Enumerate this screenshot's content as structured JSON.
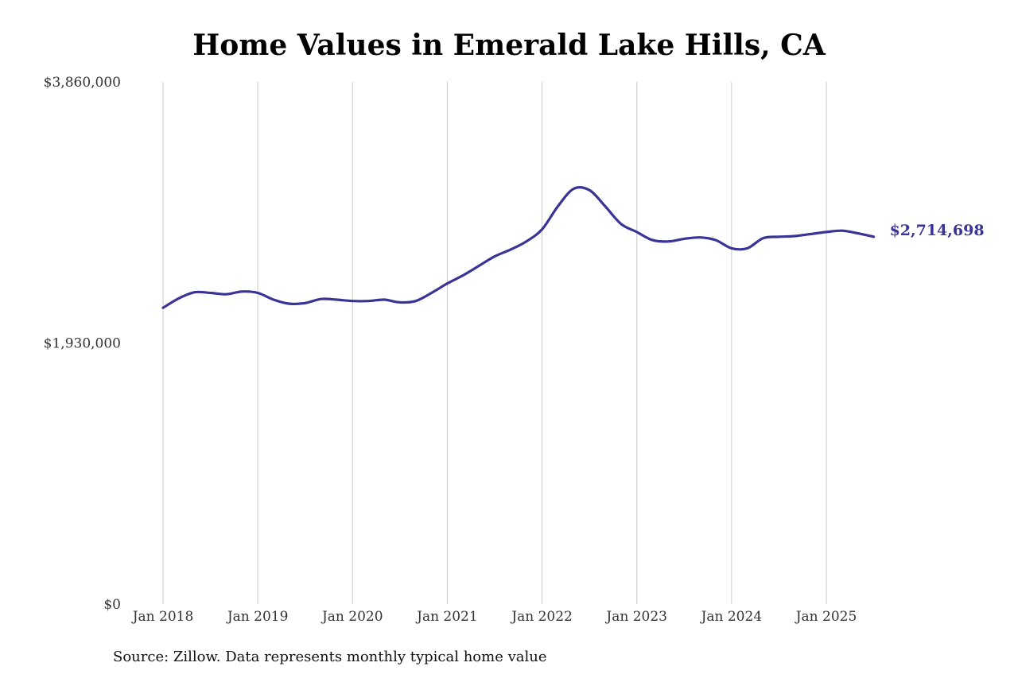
{
  "colors": {
    "line": "#3a3497",
    "grid": "#c8c8c8",
    "text": "#333333"
  },
  "chart_data": {
    "type": "line",
    "title": "Home Values in Emerald Lake Hills, CA",
    "xlabel": "",
    "ylabel": "",
    "ylim": [
      0,
      3860000
    ],
    "grid": "vertical",
    "y_ticks": [
      {
        "value": 0,
        "label": "$0"
      },
      {
        "value": 1930000,
        "label": "$1,930,000"
      },
      {
        "value": 3860000,
        "label": "$3,860,000"
      }
    ],
    "x_ticks": [
      {
        "value": "2018-01",
        "label": "Jan 2018"
      },
      {
        "value": "2019-01",
        "label": "Jan 2019"
      },
      {
        "value": "2020-01",
        "label": "Jan 2020"
      },
      {
        "value": "2021-01",
        "label": "Jan 2021"
      },
      {
        "value": "2022-01",
        "label": "Jan 2022"
      },
      {
        "value": "2023-01",
        "label": "Jan 2023"
      },
      {
        "value": "2024-01",
        "label": "Jan 2024"
      },
      {
        "value": "2025-01",
        "label": "Jan 2025"
      }
    ],
    "series": [
      {
        "points": [
          [
            "2018-01",
            2190000
          ],
          [
            "2018-03",
            2260000
          ],
          [
            "2018-05",
            2305000
          ],
          [
            "2018-07",
            2300000
          ],
          [
            "2018-09",
            2290000
          ],
          [
            "2018-11",
            2310000
          ],
          [
            "2019-01",
            2300000
          ],
          [
            "2019-03",
            2250000
          ],
          [
            "2019-05",
            2220000
          ],
          [
            "2019-07",
            2225000
          ],
          [
            "2019-09",
            2255000
          ],
          [
            "2019-11",
            2250000
          ],
          [
            "2020-01",
            2240000
          ],
          [
            "2020-03",
            2240000
          ],
          [
            "2020-05",
            2250000
          ],
          [
            "2020-07",
            2230000
          ],
          [
            "2020-09",
            2240000
          ],
          [
            "2020-11",
            2300000
          ],
          [
            "2021-01",
            2370000
          ],
          [
            "2021-03",
            2430000
          ],
          [
            "2021-05",
            2500000
          ],
          [
            "2021-07",
            2570000
          ],
          [
            "2021-09",
            2620000
          ],
          [
            "2021-11",
            2680000
          ],
          [
            "2022-01",
            2770000
          ],
          [
            "2022-03",
            2940000
          ],
          [
            "2022-05",
            3070000
          ],
          [
            "2022-07",
            3060000
          ],
          [
            "2022-09",
            2940000
          ],
          [
            "2022-11",
            2810000
          ],
          [
            "2023-01",
            2750000
          ],
          [
            "2023-03",
            2690000
          ],
          [
            "2023-05",
            2680000
          ],
          [
            "2023-07",
            2700000
          ],
          [
            "2023-09",
            2710000
          ],
          [
            "2023-11",
            2690000
          ],
          [
            "2024-01",
            2630000
          ],
          [
            "2024-03",
            2630000
          ],
          [
            "2024-05",
            2705000
          ],
          [
            "2024-07",
            2715000
          ],
          [
            "2024-09",
            2720000
          ],
          [
            "2024-11",
            2735000
          ],
          [
            "2025-01",
            2750000
          ],
          [
            "2025-03",
            2760000
          ],
          [
            "2025-05",
            2740000
          ],
          [
            "2025-07",
            2714698
          ]
        ]
      }
    ],
    "end_label": "$2,714,698"
  },
  "source_note": "Source: Zillow. Data represents monthly typical home value"
}
